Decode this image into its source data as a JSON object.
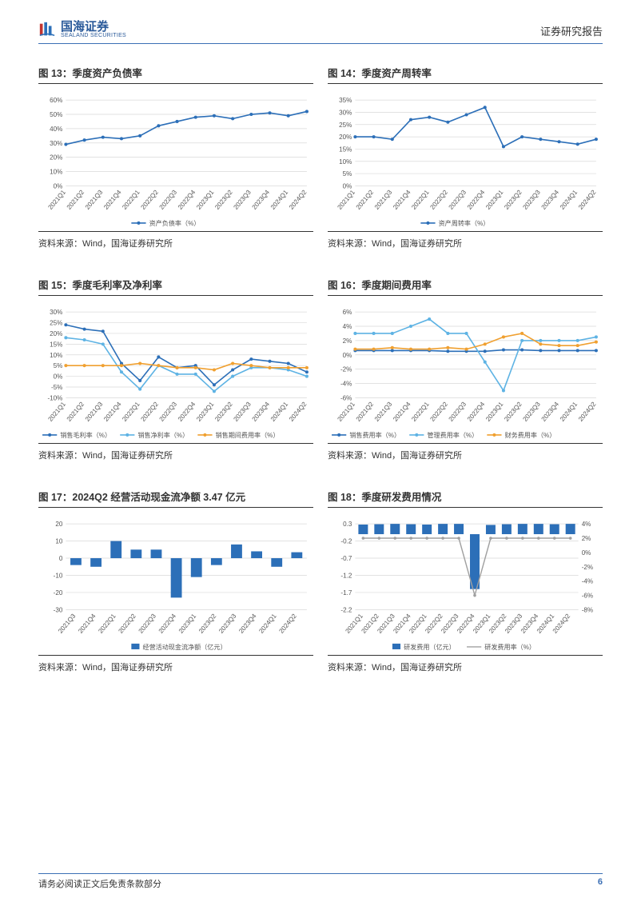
{
  "header": {
    "logo_cn": "国海证券",
    "logo_en": "SEALAND SECURITIES",
    "report_label": "证券研究报告"
  },
  "footer": {
    "disclaimer": "请务必阅读正文后免责条款部分",
    "page_num": "6"
  },
  "source_text": "资料来源：Wind，国海证券研究所",
  "colors": {
    "primary_blue": "#2c6fb8",
    "light_blue": "#5eb3e4",
    "orange": "#f0a030",
    "grid": "#d9d9d9",
    "axis": "#888888",
    "text": "#555555",
    "grey": "#a0a0a0"
  },
  "charts": {
    "c13": {
      "title": "图 13：季度资产负债率",
      "type": "line",
      "categories": [
        "2021Q1",
        "2021Q2",
        "2021Q3",
        "2021Q4",
        "2022Q1",
        "2022Q2",
        "2022Q3",
        "2022Q4",
        "2023Q1",
        "2023Q2",
        "2023Q3",
        "2023Q4",
        "2024Q1",
        "2024Q2"
      ],
      "yticks": [
        0,
        10,
        20,
        30,
        40,
        50,
        60
      ],
      "series": [
        {
          "name": "资产负债率（%）",
          "color": "#2c6fb8",
          "values": [
            29,
            32,
            34,
            33,
            35,
            42,
            45,
            48,
            49,
            47,
            50,
            51,
            49,
            52
          ]
        }
      ]
    },
    "c14": {
      "title": "图 14：季度资产周转率",
      "type": "line",
      "categories": [
        "2021Q1",
        "2021Q2",
        "2021Q3",
        "2021Q4",
        "2022Q1",
        "2022Q2",
        "2022Q3",
        "2022Q4",
        "2023Q1",
        "2023Q2",
        "2023Q3",
        "2023Q4",
        "2024Q1",
        "2024Q2"
      ],
      "yticks": [
        0,
        5,
        10,
        15,
        20,
        25,
        30,
        35
      ],
      "series": [
        {
          "name": "资产周转率（%）",
          "color": "#2c6fb8",
          "values": [
            20,
            20,
            19,
            27,
            28,
            26,
            29,
            32,
            16,
            20,
            19,
            18,
            17,
            19
          ]
        }
      ]
    },
    "c15": {
      "title": "图 15：季度毛利率及净利率",
      "type": "line",
      "categories": [
        "2021Q1",
        "2021Q2",
        "2021Q3",
        "2021Q4",
        "2022Q1",
        "2022Q2",
        "2022Q3",
        "2022Q4",
        "2023Q1",
        "2023Q2",
        "2023Q3",
        "2023Q4",
        "2024Q1",
        "2024Q2"
      ],
      "yticks": [
        -10,
        -5,
        0,
        5,
        10,
        15,
        20,
        25,
        30
      ],
      "series": [
        {
          "name": "销售毛利率（%）",
          "color": "#2c6fb8",
          "values": [
            24,
            22,
            21,
            6,
            -2,
            9,
            4,
            5,
            -4,
            3,
            8,
            7,
            6,
            2
          ]
        },
        {
          "name": "销售净利率（%）",
          "color": "#5eb3e4",
          "values": [
            18,
            17,
            15,
            2,
            -6,
            5,
            1,
            1,
            -7,
            0,
            4,
            4,
            3,
            0
          ]
        },
        {
          "name": "销售期间费用率（%）",
          "color": "#f0a030",
          "values": [
            5,
            5,
            5,
            5,
            6,
            5,
            4,
            4,
            3,
            6,
            5,
            4,
            4,
            4
          ]
        }
      ]
    },
    "c16": {
      "title": "图 16：季度期间费用率",
      "type": "line",
      "categories": [
        "2021Q1",
        "2021Q2",
        "2021Q3",
        "2021Q4",
        "2022Q1",
        "2022Q2",
        "2022Q3",
        "2022Q4",
        "2023Q1",
        "2023Q2",
        "2023Q3",
        "2023Q4",
        "2024Q1",
        "2024Q2"
      ],
      "yticks": [
        -6,
        -4,
        -2,
        0,
        2,
        4,
        6
      ],
      "series": [
        {
          "name": "销售费用率（%）",
          "color": "#2c6fb8",
          "values": [
            0.6,
            0.6,
            0.6,
            0.6,
            0.6,
            0.5,
            0.5,
            0.5,
            0.7,
            0.7,
            0.6,
            0.6,
            0.6,
            0.6
          ]
        },
        {
          "name": "管理费用率（%）",
          "color": "#5eb3e4",
          "values": [
            3,
            3,
            3,
            4,
            5,
            3,
            3,
            -1,
            -5,
            2,
            2,
            2,
            2,
            2.5
          ]
        },
        {
          "name": "财务费用率（%）",
          "color": "#f0a030",
          "values": [
            0.8,
            0.8,
            1,
            0.8,
            0.8,
            1,
            0.8,
            1.5,
            2.5,
            3,
            1.5,
            1.3,
            1.3,
            1.8
          ]
        }
      ]
    },
    "c17": {
      "title": "图 17：2024Q2 经营活动现金流净额 3.47 亿元",
      "type": "bar",
      "categories": [
        "2021Q3",
        "2021Q4",
        "2022Q1",
        "2022Q2",
        "2022Q3",
        "2022Q4",
        "2023Q1",
        "2023Q2",
        "2023Q3",
        "2023Q4",
        "2024Q1",
        "2024Q2"
      ],
      "yticks": [
        -30,
        -20,
        -10,
        0,
        10,
        20
      ],
      "series": [
        {
          "name": "经营活动现金流净额（亿元）",
          "color": "#2c6fb8",
          "values": [
            -4,
            -5,
            10,
            5,
            5,
            -23,
            -11,
            -4,
            8,
            4,
            -5,
            3.47
          ]
        }
      ]
    },
    "c18": {
      "title": "图 18：季度研发费用情况",
      "type": "bar-line",
      "categories": [
        "2021Q1",
        "2021Q2",
        "2021Q3",
        "2021Q4",
        "2022Q1",
        "2022Q2",
        "2022Q3",
        "2022Q4",
        "2023Q1",
        "2023Q2",
        "2023Q3",
        "2023Q4",
        "2024Q1",
        "2024Q2"
      ],
      "yticks": [
        -2.2,
        -1.7,
        -1.2,
        -0.7,
        -0.2,
        0.3
      ],
      "y2ticks": [
        -8,
        -6,
        -4,
        -2,
        0,
        2,
        4
      ],
      "bar": {
        "name": "研发费用（亿元）",
        "color": "#2c6fb8",
        "values": [
          0.28,
          0.29,
          0.3,
          0.29,
          0.28,
          0.3,
          0.3,
          -1.6,
          0.27,
          0.29,
          0.3,
          0.3,
          0.29,
          0.3
        ]
      },
      "line": {
        "name": "研发费用率（%）",
        "color": "#a0a0a0",
        "values": [
          2,
          2,
          2,
          2,
          2,
          2,
          2,
          -6,
          2,
          2,
          2,
          2,
          2,
          2
        ]
      }
    }
  }
}
